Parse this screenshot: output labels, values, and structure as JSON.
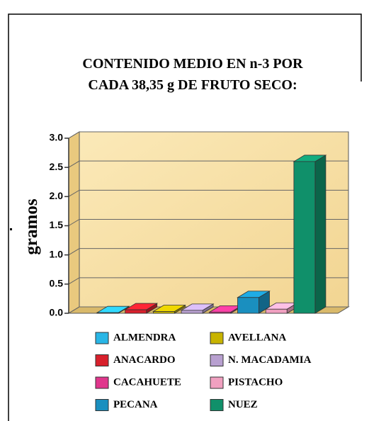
{
  "chart_data": {
    "type": "bar3d",
    "title": [
      "CONTENIDO MEDIO EN n-3 POR",
      "CADA 38,35 g DE FRUTO SECO:"
    ],
    "y_label": "gramos",
    "categories": [
      "ALMENDRA",
      "ANACARDO",
      "AVELLANA",
      "N. MACADAMIA",
      "CACAHUETE",
      "PECANA",
      "PISTACHO",
      "NUEZ"
    ],
    "values": [
      0.01,
      0.06,
      0.03,
      0.05,
      0.02,
      0.27,
      0.07,
      2.6
    ],
    "colors": [
      "#29b6e6",
      "#d8202c",
      "#c8b400",
      "#b8a0d0",
      "#e0368c",
      "#1a8fbf",
      "#f0a0c0",
      "#10906a"
    ],
    "ylim": [
      0,
      3
    ],
    "yticks": [
      {
        "value": 0,
        "label": "0.0"
      },
      {
        "value": 0.5,
        "label": "0.5"
      },
      {
        "value": 1,
        "label": "1.0"
      },
      {
        "value": 1.5,
        "label": "1.5"
      },
      {
        "value": 2,
        "label": "2.0"
      },
      {
        "value": 2.5,
        "label": "2.5"
      },
      {
        "value": 3,
        "label": "3.0"
      }
    ],
    "grid": true
  }
}
